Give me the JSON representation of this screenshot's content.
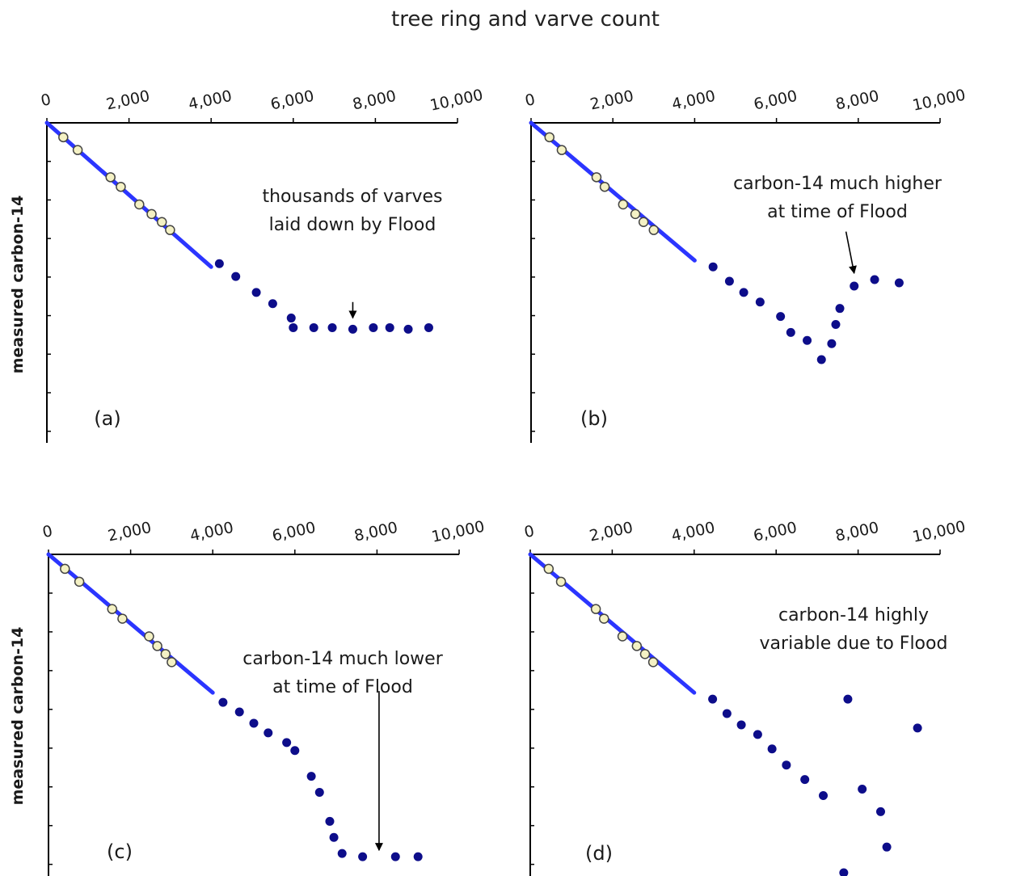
{
  "figure": {
    "title": "tree ring and varve count",
    "ylabel": "measured carbon-14"
  },
  "colors": {
    "line": "#2b35ff",
    "dot": "#0d0d8a",
    "open_fill": "#f4f1c4",
    "open_stroke": "#444444"
  },
  "chart_data": [
    {
      "type": "scatter",
      "panel_label": "(a)",
      "x_ticks": [
        "0",
        "2,000",
        "4,000",
        "6,000",
        "8,000",
        "10,000"
      ],
      "xlim": [
        0,
        10000
      ],
      "ylim": [
        0,
        1
      ],
      "y_tick_count": 8,
      "grid": false,
      "annotation": [
        "thousands of varves",
        "laid down by Flood"
      ],
      "series": [
        {
          "kind": "line",
          "x": [
            0,
            4000
          ],
          "y": [
            1.0,
            0.55
          ]
        },
        {
          "kind": "open",
          "x": [
            400,
            750,
            1550,
            1800,
            2250,
            2550,
            2800,
            3000
          ],
          "y": [
            0.955,
            0.915,
            0.83,
            0.8,
            0.745,
            0.715,
            0.69,
            0.665
          ]
        },
        {
          "kind": "dot",
          "x": [
            4200,
            4600,
            5100,
            5500,
            5950,
            6000,
            6500,
            6950,
            7450,
            7950,
            8350,
            8800,
            9300
          ],
          "y": [
            0.56,
            0.52,
            0.47,
            0.435,
            0.39,
            0.36,
            0.36,
            0.36,
            0.355,
            0.36,
            0.36,
            0.355,
            0.36
          ]
        }
      ],
      "arrow": {
        "from": [
          7450,
          0.44
        ],
        "to": [
          7450,
          0.39
        ]
      }
    },
    {
      "type": "scatter",
      "panel_label": "(b)",
      "x_ticks": [
        "0",
        "2,000",
        "4,000",
        "6,000",
        "8,000",
        "10,000"
      ],
      "xlim": [
        0,
        10000
      ],
      "ylim": [
        0,
        1
      ],
      "y_tick_count": 8,
      "grid": false,
      "annotation": [
        "carbon-14 much higher",
        "at time of Flood"
      ],
      "series": [
        {
          "kind": "line",
          "x": [
            0,
            4000
          ],
          "y": [
            1.0,
            0.57
          ]
        },
        {
          "kind": "open",
          "x": [
            450,
            750,
            1600,
            1800,
            2250,
            2550,
            2750,
            3000
          ],
          "y": [
            0.955,
            0.915,
            0.83,
            0.8,
            0.745,
            0.715,
            0.69,
            0.665
          ]
        },
        {
          "kind": "dot",
          "x": [
            4450,
            4850,
            5200,
            5600,
            6100,
            6350,
            6750,
            7100,
            7350,
            7450,
            7550,
            7900,
            8400,
            9000
          ],
          "y": [
            0.55,
            0.505,
            0.47,
            0.44,
            0.395,
            0.345,
            0.32,
            0.26,
            0.31,
            0.37,
            0.42,
            0.49,
            0.51,
            0.5
          ]
        }
      ],
      "arrow": {
        "from": [
          7700,
          0.66
        ],
        "to": [
          7900,
          0.53
        ]
      }
    },
    {
      "type": "scatter",
      "panel_label": "(c)",
      "x_ticks": [
        "0",
        "2,000",
        "4,000",
        "6,000",
        "8,000",
        "10,000"
      ],
      "xlim": [
        0,
        10000
      ],
      "ylim": [
        0,
        1
      ],
      "y_tick_count": 8,
      "grid": false,
      "annotation": [
        "carbon-14 much lower",
        "at time of Flood"
      ],
      "series": [
        {
          "kind": "line",
          "x": [
            0,
            4000
          ],
          "y": [
            1.0,
            0.57
          ]
        },
        {
          "kind": "open",
          "x": [
            400,
            750,
            1550,
            1800,
            2450,
            2650,
            2850,
            3000
          ],
          "y": [
            0.955,
            0.915,
            0.83,
            0.8,
            0.745,
            0.715,
            0.69,
            0.665
          ]
        },
        {
          "kind": "dot",
          "x": [
            4250,
            4650,
            5000,
            5350,
            5800,
            6000,
            6400,
            6600,
            6850,
            6950,
            7150,
            7650,
            8450,
            9000
          ],
          "y": [
            0.54,
            0.51,
            0.475,
            0.445,
            0.415,
            0.39,
            0.31,
            0.26,
            0.17,
            0.12,
            0.07,
            0.06,
            0.06,
            0.06
          ]
        }
      ],
      "arrow": {
        "from": [
          8050,
          0.575
        ],
        "to": [
          8050,
          0.08
        ]
      }
    },
    {
      "type": "scatter",
      "panel_label": "(d)",
      "x_ticks": [
        "0",
        "2,000",
        "4,000",
        "6,000",
        "8,000",
        "10,000"
      ],
      "xlim": [
        0,
        10000
      ],
      "ylim": [
        0,
        1
      ],
      "y_tick_count": 8,
      "grid": false,
      "annotation": [
        "carbon-14 highly",
        "variable due to Flood"
      ],
      "series": [
        {
          "kind": "line",
          "x": [
            0,
            4000
          ],
          "y": [
            1.0,
            0.57
          ]
        },
        {
          "kind": "open",
          "x": [
            450,
            750,
            1600,
            1800,
            2250,
            2600,
            2800,
            3000
          ],
          "y": [
            0.955,
            0.915,
            0.83,
            0.8,
            0.745,
            0.715,
            0.69,
            0.665
          ]
        },
        {
          "kind": "dot",
          "x": [
            4450,
            4800,
            5150,
            5550,
            5900,
            6250,
            6700,
            7150,
            7650,
            7750,
            8100,
            8550,
            8700,
            9450
          ],
          "y": [
            0.55,
            0.505,
            0.47,
            0.44,
            0.395,
            0.345,
            0.3,
            0.25,
            0.01,
            0.55,
            0.27,
            0.2,
            0.09,
            0.46
          ]
        }
      ],
      "arrow": null
    }
  ]
}
